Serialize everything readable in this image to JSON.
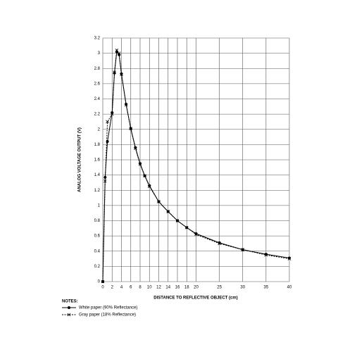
{
  "chart_data": {
    "type": "line",
    "x_label": "DISTANCE TO REFLECTIVE OBJECT (cm)",
    "y_label": "ANALOG VOLTAGE OUTPUT (V)",
    "legend_title": "NOTES:",
    "xlim": [
      0,
      40
    ],
    "ylim": [
      0,
      3.2
    ],
    "xticks": [
      0,
      2,
      4,
      6,
      8,
      10,
      12,
      14,
      16,
      18,
      20,
      25,
      30,
      35,
      40
    ],
    "yticks": [
      0,
      0.2,
      0.4,
      0.6,
      0.8,
      1,
      1.2,
      1.4,
      1.6,
      1.8,
      2,
      2.2,
      2.4,
      2.6,
      2.8,
      3,
      3.2
    ],
    "grid": true,
    "series": [
      {
        "name": "White paper (90% Reflectance)",
        "color": "#000000",
        "style": "solid",
        "marker": "dot",
        "x": [
          0,
          0.5,
          1,
          2,
          2.5,
          3,
          3.5,
          4,
          5,
          6,
          7,
          8,
          9,
          10,
          12,
          14,
          16,
          18,
          20,
          25,
          30,
          35,
          40
        ],
        "values": [
          0,
          1.37,
          1.84,
          2.22,
          2.74,
          3.02,
          2.98,
          2.73,
          2.33,
          2.01,
          1.76,
          1.55,
          1.39,
          1.26,
          1.05,
          0.92,
          0.8,
          0.71,
          0.63,
          0.51,
          0.42,
          0.36,
          0.31
        ]
      },
      {
        "name": "Gray paper (18% Reflectance)",
        "color": "#000000",
        "style": "dashed",
        "marker": "cross",
        "x": [
          0,
          0.5,
          1,
          2,
          2.5,
          3,
          3.5,
          4,
          5,
          6,
          7,
          8,
          9,
          10,
          12,
          14,
          16,
          18,
          20,
          25,
          30,
          35,
          40
        ],
        "values": [
          0,
          1.32,
          2.1,
          2.2,
          2.75,
          3.04,
          3.0,
          2.72,
          2.32,
          2.01,
          1.75,
          1.54,
          1.39,
          1.25,
          1.05,
          0.92,
          0.8,
          0.71,
          0.62,
          0.5,
          0.42,
          0.35,
          0.3
        ]
      }
    ]
  }
}
